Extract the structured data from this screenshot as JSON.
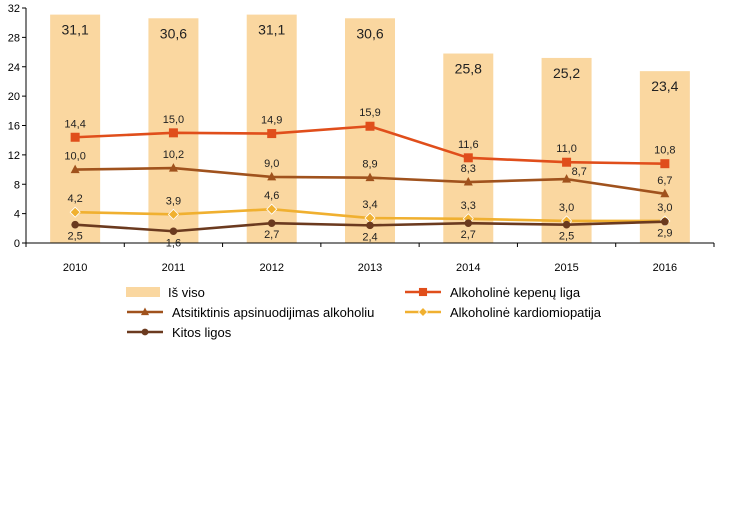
{
  "chart_data": {
    "type": "bar+line",
    "categories": [
      "2010",
      "2011",
      "2012",
      "2013",
      "2014",
      "2015",
      "2016"
    ],
    "ylim": [
      0,
      32
    ],
    "yticks": [
      0,
      4,
      8,
      12,
      16,
      20,
      24,
      28,
      32
    ],
    "grid": false,
    "legend_position": "bottom",
    "bar_series": {
      "name": "Iš viso",
      "color": "#FAD7A0",
      "values": [
        31.1,
        30.6,
        31.1,
        30.6,
        25.8,
        25.2,
        23.4
      ],
      "labels": [
        "31,1",
        "30,6",
        "31,1",
        "30,6",
        "25,8",
        "25,2",
        "23,4"
      ]
    },
    "series": [
      {
        "name": "Alkoholinė kepenų liga",
        "color": "#E04E1B",
        "marker": "square",
        "values": [
          14.4,
          15.0,
          14.9,
          15.9,
          11.6,
          11.0,
          10.8
        ],
        "labels": [
          "14,4",
          "15,0",
          "14,9",
          "15,9",
          "11,6",
          "11,0",
          "10,8"
        ],
        "label_pos": "above"
      },
      {
        "name": "Atsitiktinis apsinuodijimas alkoholiu",
        "color": "#A0521D",
        "marker": "triangle",
        "values": [
          10.0,
          10.2,
          9.0,
          8.9,
          8.3,
          8.7,
          6.7
        ],
        "labels": [
          "10,0",
          "10,2",
          "9,0",
          "8,9",
          "8,3",
          "8,7",
          "6,7"
        ],
        "label_pos": [
          "above",
          "above",
          "above",
          "above",
          "above",
          "right",
          "above"
        ]
      },
      {
        "name": "Alkoholinė kardiomiopatija",
        "color": "#F0B030",
        "marker": "diamond",
        "values": [
          4.2,
          3.9,
          4.6,
          3.4,
          3.3,
          3.0,
          3.0
        ],
        "labels": [
          "4,2",
          "3,9",
          "4,6",
          "3,4",
          "3,3",
          "3,0",
          "3,0"
        ],
        "label_pos": "above"
      },
      {
        "name": "Kitos ligos",
        "color": "#6B3A1F",
        "marker": "circle",
        "values": [
          2.5,
          1.6,
          2.7,
          2.4,
          2.7,
          2.5,
          2.9
        ],
        "labels": [
          "2,5",
          "1,6",
          "2,7",
          "2,4",
          "2,7",
          "2,5",
          "2,9"
        ],
        "label_pos": "below"
      }
    ]
  }
}
